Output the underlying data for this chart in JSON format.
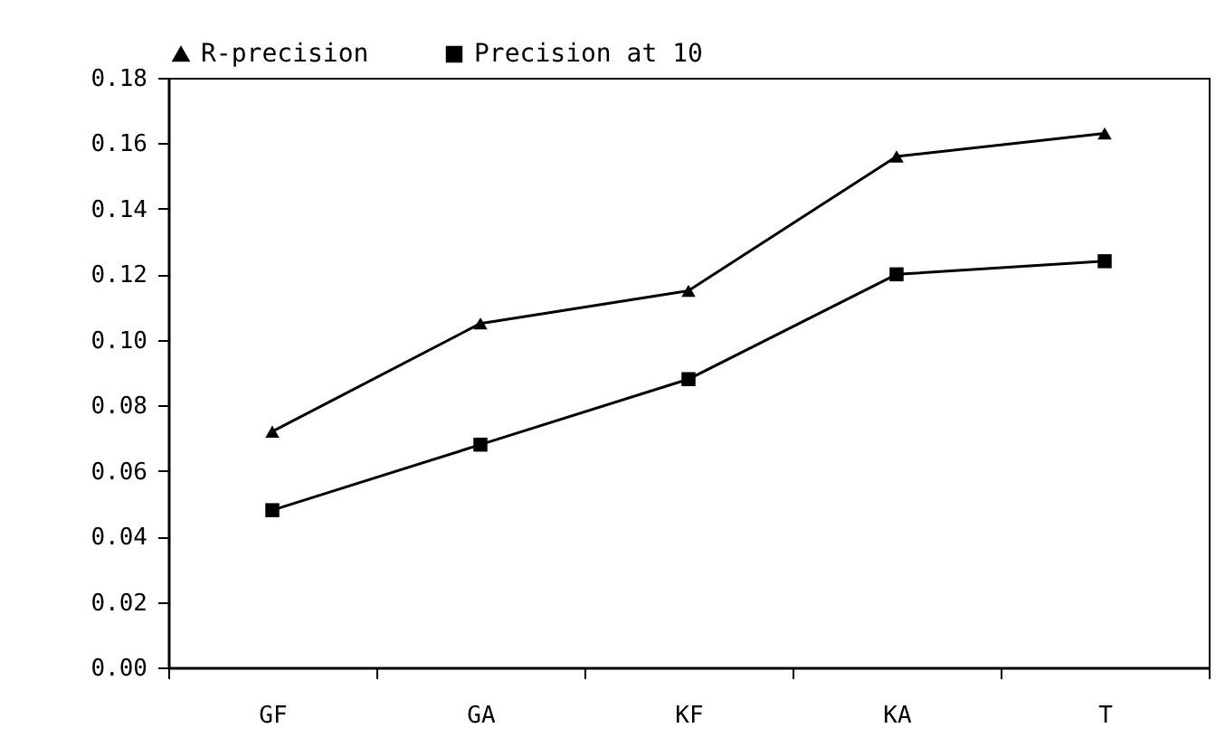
{
  "chart_data": {
    "type": "line",
    "categories": [
      "GF",
      "GA",
      "KF",
      "KA",
      "T"
    ],
    "series": [
      {
        "name": "R-precision",
        "color": "#000000",
        "marker": "triangle",
        "values": [
          0.072,
          0.105,
          0.115,
          0.156,
          0.163
        ]
      },
      {
        "name": "Precision at 10",
        "color": "#000000",
        "marker": "square",
        "values": [
          0.048,
          0.068,
          0.088,
          0.12,
          0.124
        ]
      }
    ],
    "ylim": [
      0,
      0.18
    ],
    "yticks": [
      {
        "value": 0,
        "label": "0.00"
      },
      {
        "value": 0.02,
        "label": "0.02"
      },
      {
        "value": 0.04,
        "label": "0.04"
      },
      {
        "value": 0.06,
        "label": "0.06"
      },
      {
        "value": 0.08,
        "label": "0.08"
      },
      {
        "value": 0.1,
        "label": "0.10"
      },
      {
        "value": 0.12,
        "label": "0.12"
      },
      {
        "value": 0.14,
        "label": "0.14"
      },
      {
        "value": 0.16,
        "label": "0.16"
      },
      {
        "value": 0.18,
        "label": "0.18"
      }
    ],
    "grid": false,
    "legend": "top",
    "line_style": "solid"
  }
}
